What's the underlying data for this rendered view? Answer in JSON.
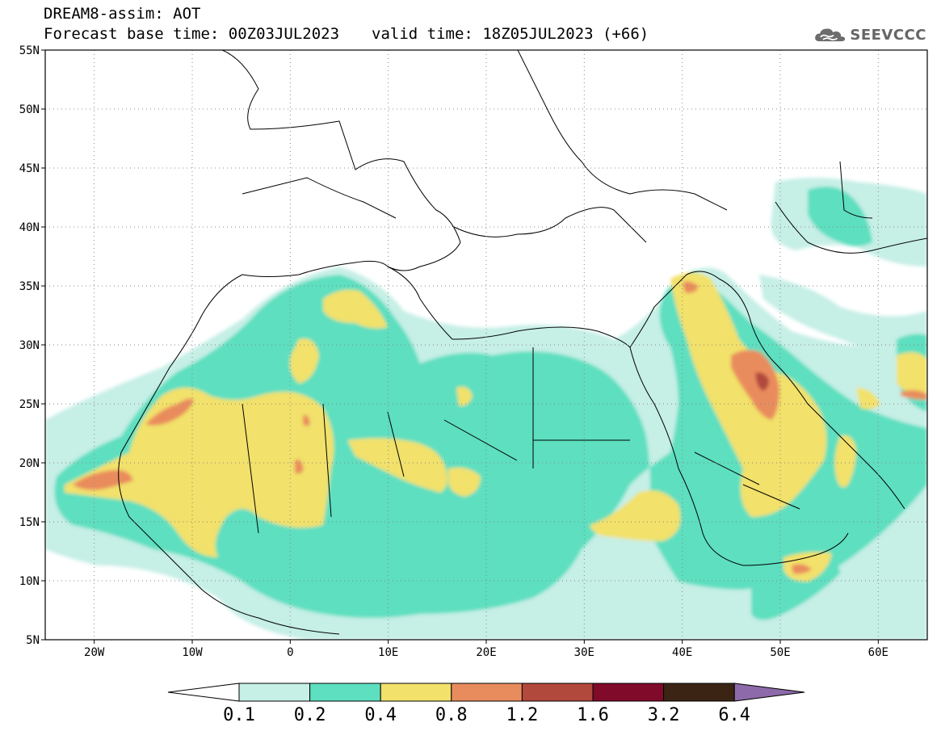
{
  "header": {
    "title": "DREAM8-assim: AOT",
    "base_time_label": "Forecast base time: 00Z03JUL2023",
    "valid_time_label": "valid time: 18Z05JUL2023 (+66)",
    "logo_text": "SEEVCCC",
    "logo_icon": "cloud-icon"
  },
  "map": {
    "lat_range": [
      5,
      55
    ],
    "lon_range": [
      -25,
      65
    ],
    "lat_ticks": [
      {
        "v": 55,
        "label": "55N"
      },
      {
        "v": 50,
        "label": "50N"
      },
      {
        "v": 45,
        "label": "45N"
      },
      {
        "v": 40,
        "label": "40N"
      },
      {
        "v": 35,
        "label": "35N"
      },
      {
        "v": 30,
        "label": "30N"
      },
      {
        "v": 25,
        "label": "25N"
      },
      {
        "v": 20,
        "label": "20N"
      },
      {
        "v": 15,
        "label": "15N"
      },
      {
        "v": 10,
        "label": "10N"
      },
      {
        "v": 5,
        "label": "5N"
      }
    ],
    "lon_ticks": [
      {
        "v": -20,
        "label": "20W"
      },
      {
        "v": -10,
        "label": "10W"
      },
      {
        "v": 0,
        "label": "0"
      },
      {
        "v": 10,
        "label": "10E"
      },
      {
        "v": 20,
        "label": "20E"
      },
      {
        "v": 30,
        "label": "30E"
      },
      {
        "v": 40,
        "label": "40E"
      },
      {
        "v": 50,
        "label": "50E"
      },
      {
        "v": 60,
        "label": "60E"
      }
    ]
  },
  "legend": {
    "levels": [
      "0.1",
      "0.2",
      "0.4",
      "0.8",
      "1.2",
      "1.6",
      "3.2",
      "6.4"
    ],
    "colors": [
      "#ffffff",
      "#c6efe6",
      "#5ddfc0",
      "#f2e16a",
      "#e98c5d",
      "#b1493d",
      "#7f0a2a",
      "#3b2414",
      "#8d6aa9"
    ]
  }
}
